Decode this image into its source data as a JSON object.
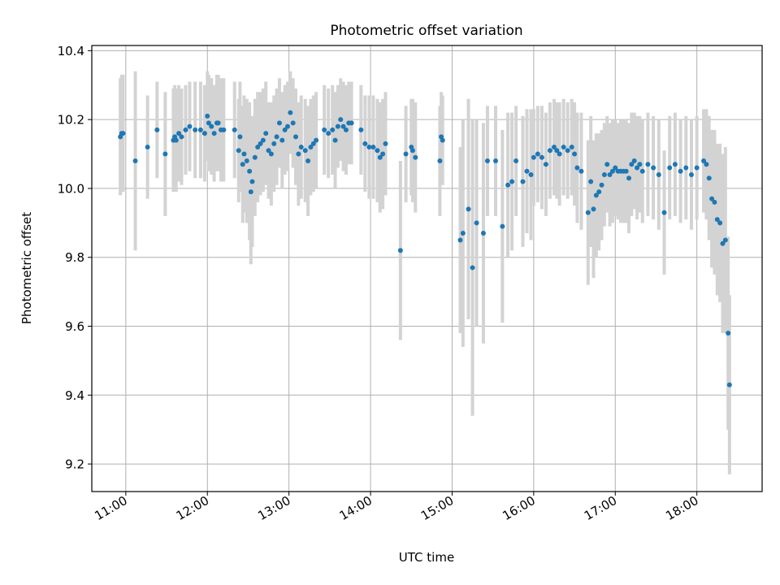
{
  "chart_data": {
    "type": "scatter",
    "title": "Photometric offset variation",
    "xlabel": "UTC time",
    "ylabel": "Photometric offset",
    "x_ticks": [
      "11:00",
      "12:00",
      "13:00",
      "14:00",
      "15:00",
      "16:00",
      "17:00",
      "18:00"
    ],
    "y_ticks": [
      "9.2",
      "9.4",
      "9.6",
      "9.8",
      "10.0",
      "10.2",
      "10.4"
    ],
    "xlim": [
      "10:35",
      "18:48"
    ],
    "ylim": [
      9.12,
      10.415
    ],
    "grid": true,
    "point_color": "#1f77b4",
    "errorbar_color": "#d3d3d3",
    "series": [
      {
        "x": [
          "10:56",
          "10:57",
          "10:58",
          "11:07",
          "11:16",
          "11:23",
          "11:29",
          "11:35",
          "11:36",
          "11:37",
          "11:39",
          "11:41",
          "11:44",
          "11:47",
          "11:51",
          "11:55",
          "11:58",
          "12:00",
          "12:01",
          "12:03",
          "12:05",
          "12:07",
          "12:08",
          "12:10",
          "12:12",
          "12:20",
          "12:23",
          "12:24",
          "12:26",
          "12:27",
          "12:29",
          "12:31",
          "12:32",
          "12:33",
          "12:35",
          "12:37",
          "12:39",
          "12:41",
          "12:43",
          "12:45",
          "12:47",
          "12:49",
          "12:51",
          "12:53",
          "12:55",
          "12:57",
          "12:59",
          "13:01",
          "13:03",
          "13:05",
          "13:07",
          "13:09",
          "13:12",
          "13:14",
          "13:16",
          "13:18",
          "13:20",
          "13:26",
          "13:29",
          "13:32",
          "13:34",
          "13:36",
          "13:38",
          "13:40",
          "13:42",
          "13:44",
          "13:46",
          "13:53",
          "13:56",
          "13:59",
          "14:02",
          "14:05",
          "14:07",
          "14:09",
          "14:11",
          "14:22",
          "14:26",
          "14:30",
          "14:31",
          "14:33",
          "14:51",
          "14:52",
          "14:53",
          "15:06",
          "15:08",
          "15:12",
          "15:15",
          "15:18",
          "15:23",
          "15:26",
          "15:32",
          "15:37",
          "15:41",
          "15:44",
          "15:47",
          "15:52",
          "15:55",
          "15:58",
          "16:00",
          "16:03",
          "16:06",
          "16:09",
          "16:12",
          "16:15",
          "16:17",
          "16:19",
          "16:22",
          "16:25",
          "16:28",
          "16:30",
          "16:32",
          "16:35",
          "16:40",
          "16:42",
          "16:44",
          "16:46",
          "16:48",
          "16:50",
          "16:52",
          "16:54",
          "16:56",
          "16:58",
          "17:00",
          "17:02",
          "17:04",
          "17:06",
          "17:08",
          "17:10",
          "17:12",
          "17:14",
          "17:16",
          "17:18",
          "17:20",
          "17:24",
          "17:28",
          "17:32",
          "17:36",
          "17:40",
          "17:44",
          "17:48",
          "17:52",
          "17:56",
          "18:00",
          "18:05",
          "18:07",
          "18:09",
          "18:11",
          "18:13",
          "18:15",
          "18:17",
          "18:19",
          "18:21",
          "18:23",
          "18:24"
        ],
        "y": [
          10.15,
          10.16,
          10.16,
          10.08,
          10.12,
          10.17,
          10.1,
          10.14,
          10.15,
          10.14,
          10.16,
          10.15,
          10.17,
          10.18,
          10.17,
          10.17,
          10.16,
          10.21,
          10.19,
          10.18,
          10.16,
          10.19,
          10.19,
          10.17,
          10.17,
          10.17,
          10.11,
          10.15,
          10.07,
          10.1,
          10.08,
          10.05,
          9.99,
          10.02,
          10.09,
          10.12,
          10.13,
          10.14,
          10.16,
          10.11,
          10.1,
          10.13,
          10.15,
          10.19,
          10.14,
          10.17,
          10.18,
          10.22,
          10.19,
          10.15,
          10.1,
          10.12,
          10.11,
          10.08,
          10.12,
          10.13,
          10.14,
          10.17,
          10.16,
          10.17,
          10.14,
          10.18,
          10.2,
          10.18,
          10.17,
          10.19,
          10.19,
          10.17,
          10.13,
          10.12,
          10.12,
          10.11,
          10.09,
          10.1,
          10.13,
          9.82,
          10.1,
          10.12,
          10.11,
          10.09,
          10.08,
          10.15,
          10.14,
          9.85,
          9.87,
          9.94,
          9.77,
          9.9,
          9.87,
          10.08,
          10.08,
          9.89,
          10.01,
          10.02,
          10.08,
          10.02,
          10.05,
          10.04,
          10.09,
          10.1,
          10.09,
          10.07,
          10.11,
          10.12,
          10.11,
          10.1,
          10.12,
          10.11,
          10.12,
          10.1,
          10.06,
          10.05,
          9.93,
          10.02,
          9.94,
          9.98,
          9.99,
          10.01,
          10.04,
          10.07,
          10.04,
          10.05,
          10.06,
          10.05,
          10.05,
          10.05,
          10.05,
          10.03,
          10.07,
          10.08,
          10.06,
          10.07,
          10.05,
          10.07,
          10.06,
          10.04,
          9.93,
          10.06,
          10.07,
          10.05,
          10.06,
          10.04,
          10.06,
          10.08,
          10.07,
          10.03,
          9.97,
          9.96,
          9.91,
          9.9,
          9.84,
          9.85,
          9.58,
          9.43
        ],
        "err": [
          0.17,
          0.17,
          0.17,
          0.26,
          0.15,
          0.14,
          0.18,
          0.15,
          0.15,
          0.15,
          0.14,
          0.14,
          0.13,
          0.13,
          0.14,
          0.14,
          0.14,
          0.13,
          0.14,
          0.14,
          0.14,
          0.14,
          0.14,
          0.15,
          0.15,
          0.14,
          0.15,
          0.16,
          0.17,
          0.17,
          0.18,
          0.2,
          0.21,
          0.19,
          0.17,
          0.16,
          0.15,
          0.15,
          0.15,
          0.14,
          0.15,
          0.14,
          0.14,
          0.13,
          0.14,
          0.13,
          0.13,
          0.12,
          0.13,
          0.14,
          0.15,
          0.15,
          0.15,
          0.16,
          0.14,
          0.14,
          0.14,
          0.13,
          0.13,
          0.13,
          0.14,
          0.12,
          0.12,
          0.13,
          0.13,
          0.12,
          0.12,
          0.13,
          0.14,
          0.15,
          0.15,
          0.15,
          0.16,
          0.16,
          0.15,
          0.26,
          0.14,
          0.14,
          0.15,
          0.16,
          0.16,
          0.13,
          0.13,
          0.27,
          0.33,
          0.32,
          0.43,
          0.3,
          0.32,
          0.16,
          0.16,
          0.28,
          0.21,
          0.2,
          0.16,
          0.19,
          0.18,
          0.19,
          0.14,
          0.14,
          0.15,
          0.15,
          0.14,
          0.14,
          0.14,
          0.15,
          0.14,
          0.14,
          0.14,
          0.15,
          0.16,
          0.17,
          0.21,
          0.19,
          0.2,
          0.18,
          0.17,
          0.16,
          0.15,
          0.14,
          0.15,
          0.15,
          0.14,
          0.14,
          0.15,
          0.15,
          0.15,
          0.16,
          0.15,
          0.14,
          0.15,
          0.14,
          0.15,
          0.15,
          0.15,
          0.16,
          0.18,
          0.15,
          0.15,
          0.15,
          0.15,
          0.16,
          0.15,
          0.15,
          0.16,
          0.18,
          0.2,
          0.21,
          0.22,
          0.23,
          0.26,
          0.27,
          0.28,
          0.26
        ]
      }
    ]
  }
}
